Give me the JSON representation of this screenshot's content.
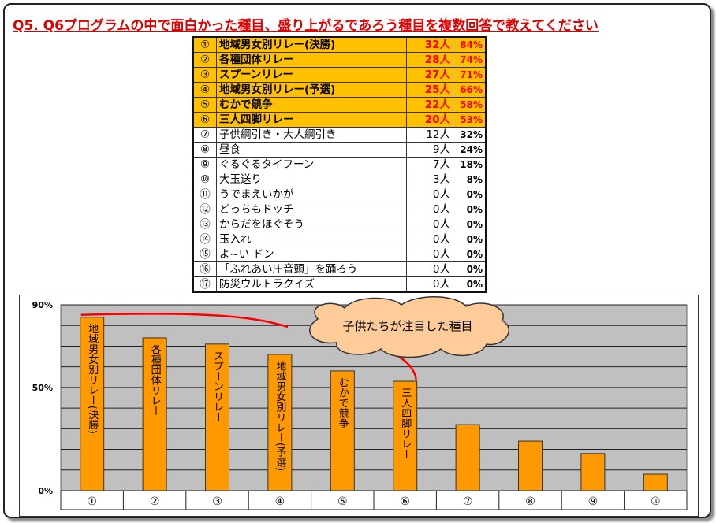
{
  "title": "Q5. Q6プログラムの中で面白かった種目、盛り上がるであろう種目を複数回答で教えてください",
  "table": [
    {
      "no": "①",
      "name": "地域男女別リレー(決勝)",
      "count": "32人",
      "pct": "84%",
      "top": true
    },
    {
      "no": "②",
      "name": "各種団体リレー",
      "count": "28人",
      "pct": "74%",
      "top": true
    },
    {
      "no": "③",
      "name": "スプーンリレー",
      "count": "27人",
      "pct": "71%",
      "top": true
    },
    {
      "no": "④",
      "name": "地域男女別リレー(予選)",
      "count": "25人",
      "pct": "66%",
      "top": true
    },
    {
      "no": "⑤",
      "name": "むかで競争",
      "count": "22人",
      "pct": "58%",
      "top": true
    },
    {
      "no": "⑥",
      "name": "三人四脚リレー",
      "count": "20人",
      "pct": "53%",
      "top": true
    },
    {
      "no": "⑦",
      "name": "子供綱引き・大人綱引き",
      "count": "12人",
      "pct": "32%",
      "top": false
    },
    {
      "no": "⑧",
      "name": "昼食",
      "count": "9人",
      "pct": "24%",
      "top": false
    },
    {
      "no": "⑨",
      "name": "ぐるぐるタイフーン",
      "count": "7人",
      "pct": "18%",
      "top": false
    },
    {
      "no": "⑩",
      "name": "大玉送り",
      "count": "3人",
      "pct": "8%",
      "top": false
    },
    {
      "no": "⑪",
      "name": "うでまえいかが",
      "count": "0人",
      "pct": "0%",
      "top": false
    },
    {
      "no": "⑫",
      "name": "どっちもドッチ",
      "count": "0人",
      "pct": "0%",
      "top": false
    },
    {
      "no": "⑬",
      "name": "からだをほぐそう",
      "count": "0人",
      "pct": "0%",
      "top": false
    },
    {
      "no": "⑭",
      "name": "玉入れ",
      "count": "0人",
      "pct": "0%",
      "top": false
    },
    {
      "no": "⑮",
      "name": "よ~い ドン",
      "count": "0人",
      "pct": "0%",
      "top": false
    },
    {
      "no": "⑯",
      "name": "「ふれあい庄音頭」を踊ろう",
      "count": "0人",
      "pct": "0%",
      "top": false
    },
    {
      "no": "⑰",
      "name": "防災ウルトラクイズ",
      "count": "0人",
      "pct": "0%",
      "top": false
    }
  ],
  "chart_data": {
    "type": "bar",
    "categories": [
      "①",
      "②",
      "③",
      "④",
      "⑤",
      "⑥",
      "⑦",
      "⑧",
      "⑨",
      "⑩"
    ],
    "values": [
      84,
      74,
      71,
      66,
      58,
      53,
      32,
      24,
      18,
      8
    ],
    "bar_labels": [
      "地域男女別リレー(決勝)",
      "各種団体リレー",
      "スプーンリレー",
      "地域男女別リレー(予選)",
      "むかで競争",
      "三人四脚リレー",
      "",
      "",
      "",
      ""
    ],
    "yticks": [
      0,
      50,
      90
    ],
    "ytick_labels": [
      "0%",
      "50%",
      "90%"
    ],
    "ylim": [
      0,
      90
    ],
    "grid": true,
    "annotation": "子供たちが注目した種目",
    "colors": {
      "bar": "#ff9900",
      "bar_stroke": "#333333",
      "plot_bg": "#c0c0c0",
      "highlight_line": "#ff0000",
      "cloud_fill": "#ffcc99",
      "top_row": "#ffc000",
      "accent_text": "#ff0000"
    }
  }
}
